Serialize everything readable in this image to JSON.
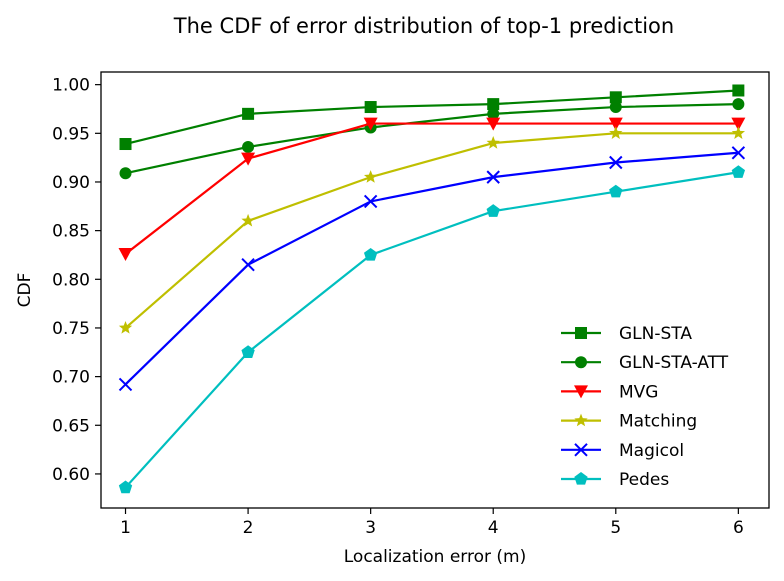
{
  "chart_data": {
    "type": "line",
    "title": "The CDF of error distribution of top-1 prediction",
    "xlabel": "Localization error (m)",
    "ylabel": "CDF",
    "x": [
      1,
      2,
      3,
      4,
      5,
      6
    ],
    "xlim": [
      0.8,
      6.25
    ],
    "ylim": [
      0.565,
      1.013
    ],
    "xticks": [
      "1",
      "2",
      "3",
      "4",
      "5",
      "6"
    ],
    "yticks": [
      "0.60",
      "0.65",
      "0.70",
      "0.75",
      "0.80",
      "0.85",
      "0.90",
      "0.95",
      "1.00"
    ],
    "grid": false,
    "legend_position": "lower-right",
    "series": [
      {
        "name": "GLN-STA",
        "color": "#008000",
        "marker": "square",
        "values": [
          0.939,
          0.97,
          0.977,
          0.98,
          0.987,
          0.994
        ]
      },
      {
        "name": "GLN-STA-ATT",
        "color": "#008000",
        "marker": "circle",
        "values": [
          0.909,
          0.936,
          0.956,
          0.97,
          0.977,
          0.98
        ]
      },
      {
        "name": "MVG",
        "color": "#ff0000",
        "marker": "triangle-down",
        "values": [
          0.826,
          0.924,
          0.96,
          0.96,
          0.96,
          0.96
        ]
      },
      {
        "name": "Matching",
        "color": "#bfbf00",
        "marker": "star",
        "values": [
          0.75,
          0.86,
          0.905,
          0.94,
          0.95,
          0.95
        ]
      },
      {
        "name": "Magicol",
        "color": "#0000ff",
        "marker": "x",
        "values": [
          0.692,
          0.815,
          0.88,
          0.905,
          0.92,
          0.93
        ]
      },
      {
        "name": "Pedes",
        "color": "#00bfbf",
        "marker": "pentagon",
        "values": [
          0.586,
          0.725,
          0.825,
          0.87,
          0.89,
          0.91
        ]
      }
    ]
  }
}
